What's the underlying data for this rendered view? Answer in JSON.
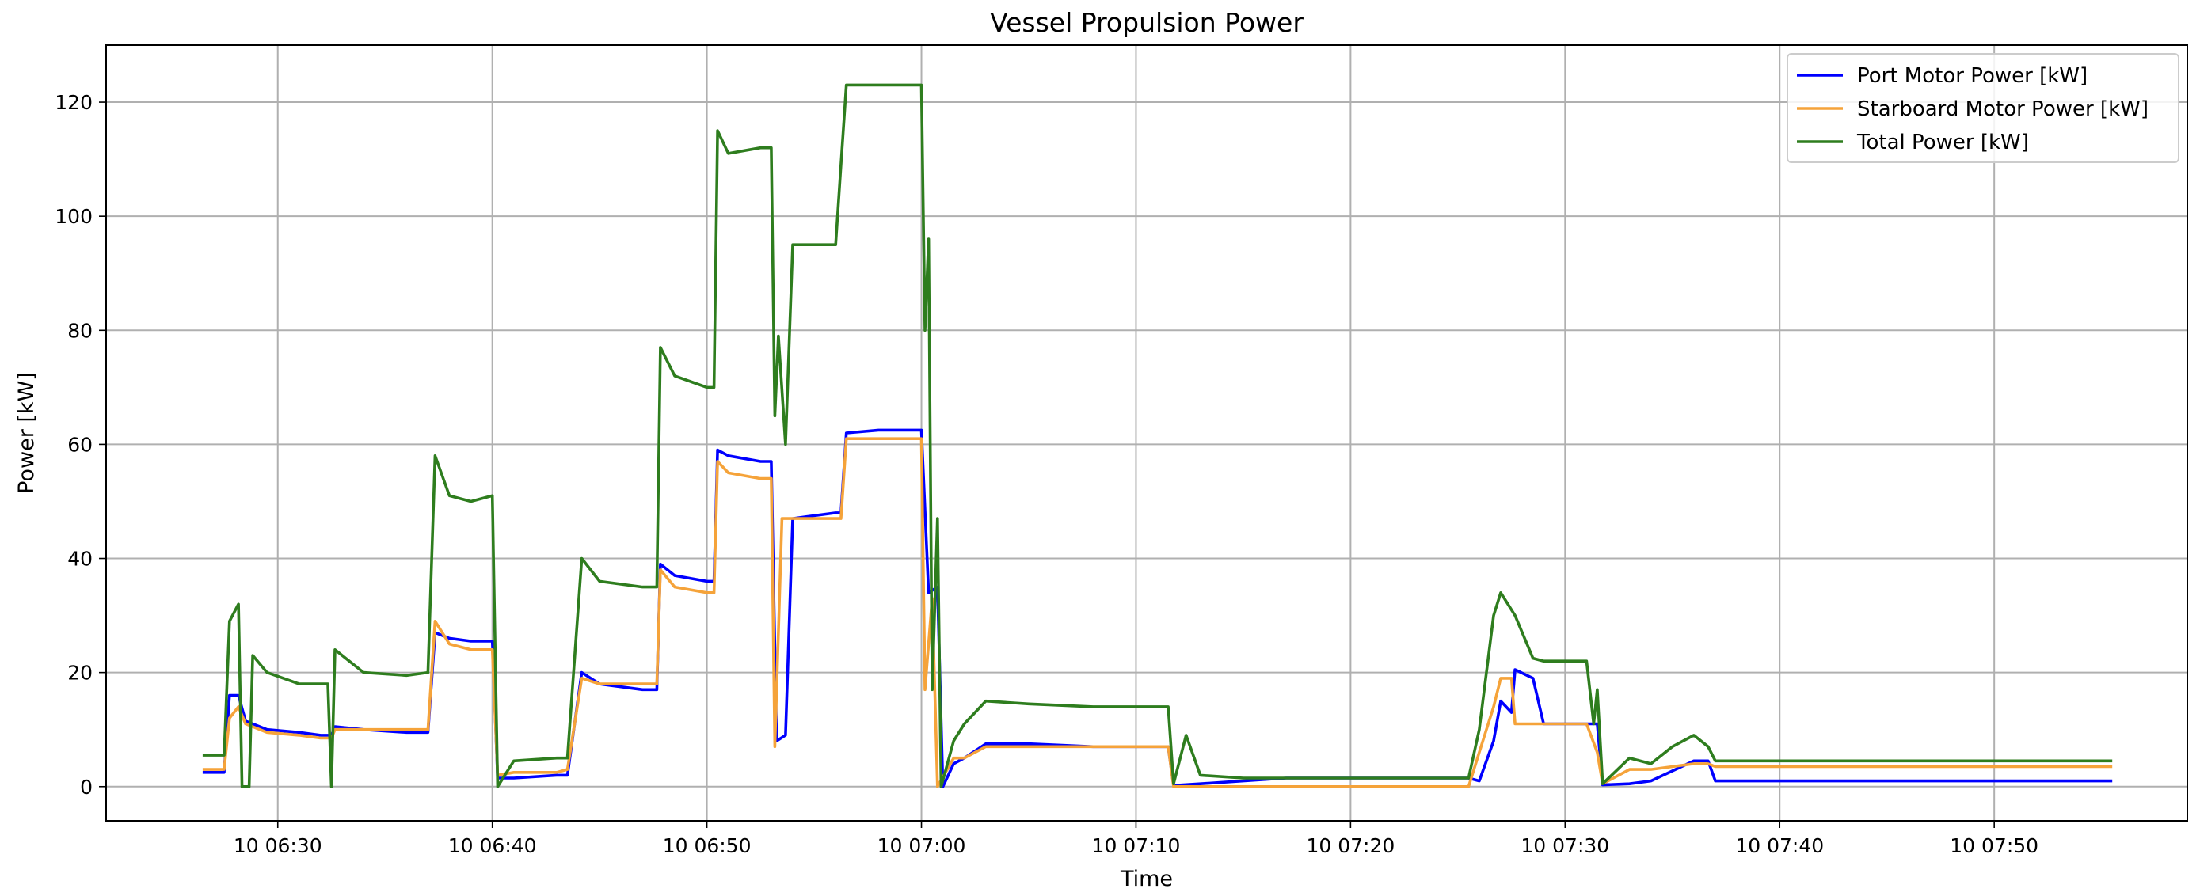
{
  "chart_data": {
    "type": "line",
    "title": "Vessel Propulsion Power",
    "xlabel": "Time",
    "ylabel": "Power [kW]",
    "x_unit": "minutes after 10 06:22",
    "xlim": [
      "10 06:22",
      "10 07:59"
    ],
    "ylim": [
      -6,
      130
    ],
    "x_ticks": [
      {
        "label": "10 06:30",
        "time": "06:30"
      },
      {
        "label": "10 06:40",
        "time": "06:40"
      },
      {
        "label": "10 06:50",
        "time": "06:50"
      },
      {
        "label": "10 07:00",
        "time": "07:00"
      },
      {
        "label": "10 07:10",
        "time": "07:10"
      },
      {
        "label": "10 07:20",
        "time": "07:20"
      },
      {
        "label": "10 07:30",
        "time": "07:30"
      },
      {
        "label": "10 07:40",
        "time": "07:40"
      },
      {
        "label": "10 07:50",
        "time": "07:50"
      }
    ],
    "y_ticks": [
      "0",
      "20",
      "40",
      "60",
      "80",
      "100",
      "120"
    ],
    "grid": true,
    "legend_position": "top-right",
    "colors": {
      "port": "#0000ff",
      "starboard": "#f5a33a",
      "total": "#2e7d1e"
    },
    "series": [
      {
        "name": "Port Motor Power [kW]",
        "color": "#0000ff",
        "points": [
          [
            "06:26:30",
            2.5
          ],
          [
            "06:27:30",
            2.5
          ],
          [
            "06:27:45",
            16
          ],
          [
            "06:28:10",
            16
          ],
          [
            "06:28:30",
            11.5
          ],
          [
            "06:29:30",
            10
          ],
          [
            "06:31",
            9.5
          ],
          [
            "06:32",
            9
          ],
          [
            "06:32:30",
            9
          ],
          [
            "06:32:40",
            10.5
          ],
          [
            "06:34",
            10
          ],
          [
            "06:36",
            9.5
          ],
          [
            "06:37",
            9.5
          ],
          [
            "06:37:20",
            27
          ],
          [
            "06:38",
            26
          ],
          [
            "06:39",
            25.5
          ],
          [
            "06:40",
            25.5
          ],
          [
            "06:40:15",
            1.5
          ],
          [
            "06:41",
            1.5
          ],
          [
            "06:43",
            2
          ],
          [
            "06:43:30",
            2
          ],
          [
            "06:44:10",
            20
          ],
          [
            "06:45",
            18
          ],
          [
            "06:47",
            17
          ],
          [
            "06:47:40",
            17
          ],
          [
            "06:47:50",
            39
          ],
          [
            "06:48:30",
            37
          ],
          [
            "06:50",
            36
          ],
          [
            "06:50:20",
            36
          ],
          [
            "06:50:30",
            59
          ],
          [
            "06:51",
            58
          ],
          [
            "06:52:30",
            57
          ],
          [
            "06:53",
            57
          ],
          [
            "06:53:15",
            8
          ],
          [
            "06:53:40",
            9
          ],
          [
            "06:54",
            47
          ],
          [
            "06:56",
            48
          ],
          [
            "06:56:15",
            48
          ],
          [
            "06:56:30",
            62
          ],
          [
            "06:58",
            62.5
          ],
          [
            "07:00",
            62.5
          ],
          [
            "07:00:20",
            34
          ],
          [
            "07:00:45",
            35
          ],
          [
            "07:01",
            0
          ],
          [
            "07:01:30",
            4
          ],
          [
            "07:02",
            5
          ],
          [
            "07:03",
            7.5
          ],
          [
            "07:05",
            7.5
          ],
          [
            "07:08",
            7
          ],
          [
            "07:11",
            7
          ],
          [
            "07:11:30",
            7
          ],
          [
            "07:11:45",
            0.2
          ],
          [
            "07:13",
            0.5
          ],
          [
            "07:15",
            1
          ],
          [
            "07:17",
            1.5
          ],
          [
            "07:20",
            1.5
          ],
          [
            "07:23",
            1.5
          ],
          [
            "07:25:30",
            1.5
          ],
          [
            "07:26",
            1
          ],
          [
            "07:26:40",
            8
          ],
          [
            "07:27",
            15
          ],
          [
            "07:27:30",
            13
          ],
          [
            "07:27:40",
            20.5
          ],
          [
            "07:28:30",
            19
          ],
          [
            "07:29",
            11
          ],
          [
            "07:31",
            11
          ],
          [
            "07:31:30",
            11
          ],
          [
            "07:31:45",
            0.3
          ],
          [
            "07:33",
            0.5
          ],
          [
            "07:34",
            1
          ],
          [
            "07:36",
            4.5
          ],
          [
            "07:36:40",
            4.5
          ],
          [
            "07:37",
            1
          ],
          [
            "07:40",
            1
          ],
          [
            "07:55:30",
            1
          ]
        ]
      },
      {
        "name": "Starboard Motor Power [kW]",
        "color": "#f5a33a",
        "points": [
          [
            "06:26:30",
            3
          ],
          [
            "06:27:30",
            3
          ],
          [
            "06:27:45",
            12
          ],
          [
            "06:28:10",
            14
          ],
          [
            "06:28:30",
            11
          ],
          [
            "06:29:30",
            9.5
          ],
          [
            "06:31",
            9
          ],
          [
            "06:32",
            8.5
          ],
          [
            "06:32:30",
            8.5
          ],
          [
            "06:32:40",
            10
          ],
          [
            "06:34",
            10
          ],
          [
            "06:36",
            10
          ],
          [
            "06:37",
            10
          ],
          [
            "06:37:20",
            29
          ],
          [
            "06:38",
            25
          ],
          [
            "06:39",
            24
          ],
          [
            "06:40",
            24
          ],
          [
            "06:40:15",
            2
          ],
          [
            "06:41",
            2.5
          ],
          [
            "06:43",
            2.5
          ],
          [
            "06:43:30",
            3
          ],
          [
            "06:44:10",
            19
          ],
          [
            "06:45",
            18
          ],
          [
            "06:47",
            18
          ],
          [
            "06:47:40",
            18
          ],
          [
            "06:47:50",
            38
          ],
          [
            "06:48:30",
            35
          ],
          [
            "06:50",
            34
          ],
          [
            "06:50:20",
            34
          ],
          [
            "06:50:30",
            57
          ],
          [
            "06:51",
            55
          ],
          [
            "06:52:30",
            54
          ],
          [
            "06:53",
            54
          ],
          [
            "06:53:10",
            7
          ],
          [
            "06:53:30",
            47
          ],
          [
            "06:54",
            47
          ],
          [
            "06:56",
            47
          ],
          [
            "06:56:15",
            47
          ],
          [
            "06:56:30",
            61
          ],
          [
            "06:58",
            61
          ],
          [
            "07:00",
            61
          ],
          [
            "07:00:10",
            17
          ],
          [
            "07:00:30",
            33
          ],
          [
            "07:00:45",
            0
          ],
          [
            "07:01:30",
            5
          ],
          [
            "07:02",
            5
          ],
          [
            "07:03",
            7
          ],
          [
            "07:05",
            7
          ],
          [
            "07:08",
            7
          ],
          [
            "07:11",
            7
          ],
          [
            "07:11:30",
            7
          ],
          [
            "07:11:45",
            0
          ],
          [
            "07:13",
            0
          ],
          [
            "07:15",
            0
          ],
          [
            "07:17",
            0
          ],
          [
            "07:20",
            0
          ],
          [
            "07:23",
            0
          ],
          [
            "07:25:30",
            0
          ],
          [
            "07:26",
            6
          ],
          [
            "07:26:40",
            14
          ],
          [
            "07:27",
            19
          ],
          [
            "07:27:30",
            19
          ],
          [
            "07:27:40",
            11
          ],
          [
            "07:28:30",
            11
          ],
          [
            "07:29",
            11
          ],
          [
            "07:31",
            11
          ],
          [
            "07:31:30",
            6
          ],
          [
            "07:31:45",
            0.5
          ],
          [
            "07:33",
            3
          ],
          [
            "07:34",
            3
          ],
          [
            "07:36",
            4
          ],
          [
            "07:36:40",
            4
          ],
          [
            "07:37",
            3.5
          ],
          [
            "07:40",
            3.5
          ],
          [
            "07:55:30",
            3.5
          ]
        ]
      },
      {
        "name": "Total Power [kW]",
        "color": "#2e7d1e",
        "points": [
          [
            "06:26:30",
            5.5
          ],
          [
            "06:27:30",
            5.5
          ],
          [
            "06:27:45",
            29
          ],
          [
            "06:28:10",
            32
          ],
          [
            "06:28:20",
            0
          ],
          [
            "06:28:40",
            0
          ],
          [
            "06:28:50",
            23
          ],
          [
            "06:29:30",
            20
          ],
          [
            "06:31",
            18
          ],
          [
            "06:32",
            18
          ],
          [
            "06:32:20",
            18
          ],
          [
            "06:32:30",
            0
          ],
          [
            "06:32:40",
            24
          ],
          [
            "06:34",
            20
          ],
          [
            "06:36",
            19.5
          ],
          [
            "06:37",
            20
          ],
          [
            "06:37:20",
            58
          ],
          [
            "06:38",
            51
          ],
          [
            "06:39",
            50
          ],
          [
            "06:40",
            51
          ],
          [
            "06:40:15",
            0
          ],
          [
            "06:41",
            4.5
          ],
          [
            "06:43",
            5
          ],
          [
            "06:43:30",
            5
          ],
          [
            "06:44:10",
            40
          ],
          [
            "06:45",
            36
          ],
          [
            "06:47",
            35
          ],
          [
            "06:47:40",
            35
          ],
          [
            "06:47:50",
            77
          ],
          [
            "06:48:30",
            72
          ],
          [
            "06:50",
            70
          ],
          [
            "06:50:20",
            70
          ],
          [
            "06:50:30",
            115
          ],
          [
            "06:51",
            111
          ],
          [
            "06:52:30",
            112
          ],
          [
            "06:53",
            112
          ],
          [
            "06:53:10",
            65
          ],
          [
            "06:53:20",
            79
          ],
          [
            "06:53:40",
            60
          ],
          [
            "06:54",
            95
          ],
          [
            "06:56",
            95
          ],
          [
            "06:56:15",
            109
          ],
          [
            "06:56:30",
            123
          ],
          [
            "06:58",
            123
          ],
          [
            "07:00",
            123
          ],
          [
            "07:00:10",
            80
          ],
          [
            "07:00:20",
            96
          ],
          [
            "07:00:30",
            17
          ],
          [
            "07:00:45",
            47
          ],
          [
            "07:00:55",
            0
          ],
          [
            "07:01:30",
            8
          ],
          [
            "07:02",
            11
          ],
          [
            "07:03",
            15
          ],
          [
            "07:05",
            14.5
          ],
          [
            "07:08",
            14
          ],
          [
            "07:11",
            14
          ],
          [
            "07:11:30",
            14
          ],
          [
            "07:11:45",
            0.5
          ],
          [
            "07:12:20",
            9
          ],
          [
            "07:13",
            2
          ],
          [
            "07:15",
            1.5
          ],
          [
            "07:17",
            1.5
          ],
          [
            "07:20",
            1.5
          ],
          [
            "07:23",
            1.5
          ],
          [
            "07:25:30",
            1.5
          ],
          [
            "07:26",
            10
          ],
          [
            "07:26:40",
            30
          ],
          [
            "07:27",
            34
          ],
          [
            "07:27:30",
            31
          ],
          [
            "07:27:40",
            30
          ],
          [
            "07:28:30",
            22.5
          ],
          [
            "07:29",
            22
          ],
          [
            "07:31",
            22
          ],
          [
            "07:31:20",
            11
          ],
          [
            "07:31:30",
            17
          ],
          [
            "07:31:45",
            0.5
          ],
          [
            "07:33",
            5
          ],
          [
            "07:34",
            4
          ],
          [
            "07:35",
            7
          ],
          [
            "07:36",
            9
          ],
          [
            "07:36:40",
            7
          ],
          [
            "07:37",
            4.5
          ],
          [
            "07:40",
            4.5
          ],
          [
            "07:55:30",
            4.5
          ]
        ]
      }
    ]
  }
}
